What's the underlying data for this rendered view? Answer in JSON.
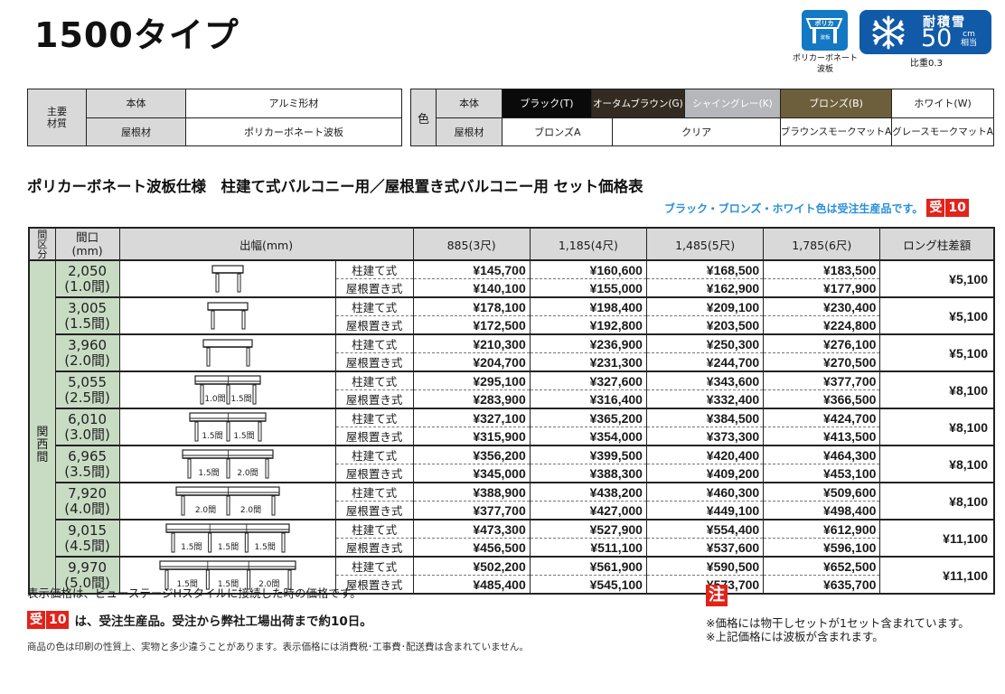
{
  "title": "1500タイプ",
  "badges": {
    "poly_icon": "polycarbonate-roof-icon",
    "poly_text_top": "ポリカ",
    "poly_text_bottom": "波板",
    "poly_caption_1": "ポリカーボネート",
    "poly_caption_2": "波板",
    "snow_icon": "snowflake-icon",
    "snow_label": "耐積雪",
    "snow_value": "50",
    "snow_unit_1": "cm",
    "snow_unit_2": "相当",
    "snow_caption": "比重0.3"
  },
  "materials": {
    "header": "主要材質",
    "rows": [
      {
        "label": "本体",
        "value": "アルミ形材"
      },
      {
        "label": "屋根材",
        "value": "ポリカーボネート波板"
      }
    ]
  },
  "colors": {
    "header": "色",
    "body_label": "本体",
    "body_colors": [
      {
        "label": "ブラック(T)",
        "bg": "#0a0a0a",
        "fg": "#ffffff"
      },
      {
        "label": "オータムブラウン(G)",
        "bg": "#332b21",
        "fg": "#ffffff"
      },
      {
        "label": "シャイングレー(K)",
        "bg": "#b5b7ba",
        "fg": "#ffffff"
      },
      {
        "label": "ブロンズ(B)",
        "bg": "#6e5f3c",
        "fg": "#ffffff"
      },
      {
        "label": "ホワイト(W)",
        "bg": "#ffffff",
        "fg": "#111111"
      }
    ],
    "roof_label": "屋根材",
    "roof_colors": [
      "ブロンズA",
      "クリア",
      "ブラウンスモークマットA",
      "グレースモークマットA"
    ]
  },
  "section_title": "ポリカーボネート波板仕様　柱建て式バルコニー用／屋根置き式バルコニー用 セット価格表",
  "notice": "ブラック・ブロンズ・ホワイト色は受注生産品です。",
  "uke_badge": {
    "kanji": "受",
    "days": "10",
    "color": "#e2231a"
  },
  "table": {
    "headers": {
      "region": "間区分",
      "span": "間口(mm)",
      "projection": "出幅(mm)",
      "cols": [
        "885(3尺)",
        "1,185(4尺)",
        "1,485(5尺)",
        "1,785(6尺)"
      ],
      "long": "ロング柱差額"
    },
    "region_label": "関西間",
    "types": [
      "柱建て式",
      "屋根置き式"
    ],
    "rows": [
      {
        "span": "2,050",
        "ken": "(1.0間)",
        "bays": [],
        "post": [
          "¥145,700",
          "¥160,600",
          "¥168,500",
          "¥183,500"
        ],
        "roof": [
          "¥140,100",
          "¥155,000",
          "¥162,900",
          "¥177,900"
        ],
        "long": "¥5,100"
      },
      {
        "span": "3,005",
        "ken": "(1.5間)",
        "bays": [],
        "post": [
          "¥178,100",
          "¥198,400",
          "¥209,100",
          "¥230,400"
        ],
        "roof": [
          "¥172,500",
          "¥192,800",
          "¥203,500",
          "¥224,800"
        ],
        "long": "¥5,100"
      },
      {
        "span": "3,960",
        "ken": "(2.0間)",
        "bays": [],
        "post": [
          "¥210,300",
          "¥236,900",
          "¥250,300",
          "¥276,100"
        ],
        "roof": [
          "¥204,700",
          "¥231,300",
          "¥244,700",
          "¥270,500"
        ],
        "long": "¥5,100"
      },
      {
        "span": "5,055",
        "ken": "(2.5間)",
        "bays": [
          "1.0間",
          "1.5間"
        ],
        "post": [
          "¥295,100",
          "¥327,600",
          "¥343,600",
          "¥377,700"
        ],
        "roof": [
          "¥283,900",
          "¥316,400",
          "¥332,400",
          "¥366,500"
        ],
        "long": "¥8,100"
      },
      {
        "span": "6,010",
        "ken": "(3.0間)",
        "bays": [
          "1.5間",
          "1.5間"
        ],
        "post": [
          "¥327,100",
          "¥365,200",
          "¥384,500",
          "¥424,700"
        ],
        "roof": [
          "¥315,900",
          "¥354,000",
          "¥373,300",
          "¥413,500"
        ],
        "long": "¥8,100"
      },
      {
        "span": "6,965",
        "ken": "(3.5間)",
        "bays": [
          "1.5間",
          "2.0間"
        ],
        "post": [
          "¥356,200",
          "¥399,500",
          "¥420,400",
          "¥464,300"
        ],
        "roof": [
          "¥345,000",
          "¥388,300",
          "¥409,200",
          "¥453,100"
        ],
        "long": "¥8,100"
      },
      {
        "span": "7,920",
        "ken": "(4.0間)",
        "bays": [
          "2.0間",
          "2.0間"
        ],
        "post": [
          "¥388,900",
          "¥438,200",
          "¥460,300",
          "¥509,600"
        ],
        "roof": [
          "¥377,700",
          "¥427,000",
          "¥449,100",
          "¥498,400"
        ],
        "long": "¥8,100"
      },
      {
        "span": "9,015",
        "ken": "(4.5間)",
        "bays": [
          "1.5間",
          "1.5間",
          "1.5間"
        ],
        "post": [
          "¥473,300",
          "¥527,900",
          "¥554,400",
          "¥612,900"
        ],
        "roof": [
          "¥456,500",
          "¥511,100",
          "¥537,600",
          "¥596,100"
        ],
        "long": "¥11,100"
      },
      {
        "span": "9,970",
        "ken": "(5.0間)",
        "bays": [
          "1.5間",
          "1.5間",
          "2.0間"
        ],
        "post": [
          "¥502,200",
          "¥561,900",
          "¥590,500",
          "¥652,500"
        ],
        "roof": [
          "¥485,400",
          "¥545,100",
          "¥573,700",
          "¥635,700"
        ],
        "long": "¥11,100"
      }
    ]
  },
  "footer": {
    "line1": "表示価格は、ビューステージHスタイルに接続した時の価格です。",
    "line2": "は、受注生産品。受注から弊社工場出荷まで約10日。",
    "line3": "商品の色は印刷の性質上、実物と多少違うことがあります。表示価格には消費税･工事費･配送費は含まれていません。",
    "note_badge": "注",
    "note1": "※価格には物干しセットが1セット含まれています。",
    "note2": "※上記価格には波板が含まれます。"
  }
}
